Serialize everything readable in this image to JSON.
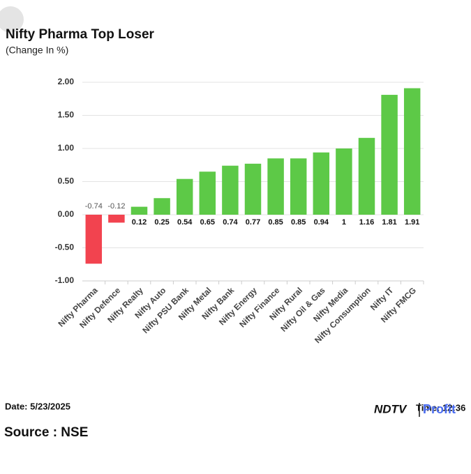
{
  "chart_data": {
    "type": "bar",
    "title": "Nifty Pharma Top Loser",
    "subtitle": "(Change In %)",
    "categories": [
      "Nifty Pharma",
      "Nifty Defence",
      "Nifty Realty",
      "Nifty Auto",
      "Nifty PSU Bank",
      "Nifty Metal",
      "Nifty Bank",
      "Nifty Energy",
      "Nifty Finance",
      "Nifty Rural",
      "Nifty Oil & Gas",
      "Nifty Media",
      "Nifty Consumption",
      "Nifty IT",
      "Nifty FMCG"
    ],
    "values": [
      -0.74,
      -0.12,
      0.12,
      0.25,
      0.54,
      0.65,
      0.74,
      0.77,
      0.85,
      0.85,
      0.94,
      1,
      1.16,
      1.81,
      1.91
    ],
    "colors": {
      "positive": "#5dc947",
      "negative": "#f2434f"
    },
    "ylim": [
      -1,
      2
    ],
    "yticks": [
      {
        "value": -1,
        "label": "-1.00"
      },
      {
        "value": -0.5,
        "label": "-0.50"
      },
      {
        "value": 0,
        "label": "0.00"
      },
      {
        "value": 0.5,
        "label": "0.50"
      },
      {
        "value": 1,
        "label": "1.00"
      },
      {
        "value": 1.5,
        "label": "1.50"
      },
      {
        "value": 2,
        "label": "2.00"
      }
    ],
    "grid": true
  },
  "footer": {
    "date": "Date: 5/23/2025",
    "source": "Source : NSE",
    "time": "Time: 12:36",
    "logo_left": "NDTV",
    "logo_right": "Profit"
  }
}
